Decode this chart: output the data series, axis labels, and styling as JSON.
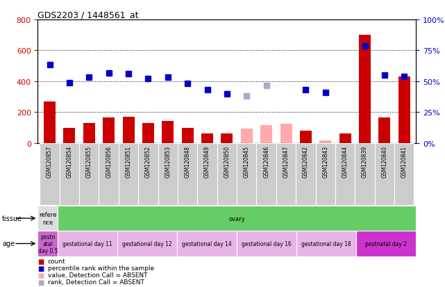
{
  "title": "GDS2203 / 1448561_at",
  "samples": [
    "GSM120857",
    "GSM120854",
    "GSM120855",
    "GSM120856",
    "GSM120851",
    "GSM120852",
    "GSM120853",
    "GSM120848",
    "GSM120849",
    "GSM120850",
    "GSM120845",
    "GSM120846",
    "GSM120847",
    "GSM120842",
    "GSM120843",
    "GSM120844",
    "GSM120839",
    "GSM120840",
    "GSM120841"
  ],
  "count_values": [
    270,
    100,
    130,
    165,
    170,
    130,
    145,
    100,
    65,
    65,
    null,
    null,
    null,
    80,
    null,
    65,
    700,
    165,
    430
  ],
  "count_absent": [
    null,
    null,
    null,
    null,
    null,
    null,
    null,
    null,
    null,
    null,
    95,
    115,
    125,
    null,
    20,
    null,
    null,
    null,
    null
  ],
  "rank_values": [
    510,
    390,
    425,
    455,
    450,
    420,
    425,
    385,
    345,
    320,
    null,
    null,
    null,
    345,
    330,
    null,
    630,
    440,
    430
  ],
  "rank_absent": [
    null,
    null,
    null,
    null,
    null,
    null,
    null,
    null,
    null,
    null,
    305,
    375,
    null,
    null,
    null,
    null,
    null,
    null,
    null
  ],
  "ylim_left": [
    0,
    800
  ],
  "ylim_right": [
    0,
    100
  ],
  "yticks_left": [
    0,
    200,
    400,
    600,
    800
  ],
  "yticks_right": [
    0,
    25,
    50,
    75,
    100
  ],
  "count_color": "#cc0000",
  "rank_color": "#0000cc",
  "count_absent_color": "#ffaaaa",
  "rank_absent_color": "#aaaacc",
  "tissue_segments": [
    {
      "text": "refere\nnce",
      "color": "#dddddd",
      "start": 0,
      "end": 1
    },
    {
      "text": "ovary",
      "color": "#66cc66",
      "start": 1,
      "end": 19
    }
  ],
  "age_segments": [
    {
      "text": "postn\natal\nday 0.5",
      "color": "#cc66cc",
      "start": 0,
      "end": 1
    },
    {
      "text": "gestational day 11",
      "color": "#e8b4e8",
      "start": 1,
      "end": 4
    },
    {
      "text": "gestational day 12",
      "color": "#e8b4e8",
      "start": 4,
      "end": 7
    },
    {
      "text": "gestational day 14",
      "color": "#e8b4e8",
      "start": 7,
      "end": 10
    },
    {
      "text": "gestational day 16",
      "color": "#e8b4e8",
      "start": 10,
      "end": 13
    },
    {
      "text": "gestational day 18",
      "color": "#e8b4e8",
      "start": 13,
      "end": 16
    },
    {
      "text": "postnatal day 2",
      "color": "#cc33cc",
      "start": 16,
      "end": 19
    }
  ],
  "col_bg_color": "#cccccc",
  "plot_bg_color": "#ffffff",
  "bar_width": 0.6
}
